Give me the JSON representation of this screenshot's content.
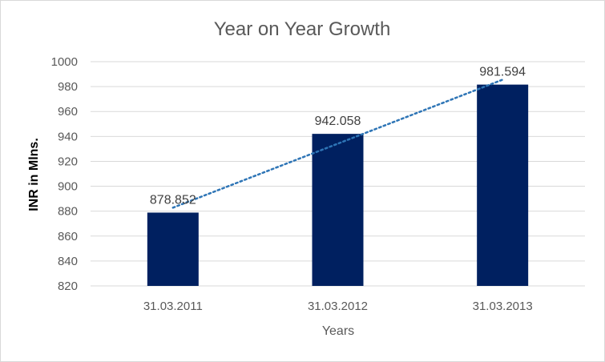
{
  "chart_data": {
    "type": "bar",
    "title": "Year on Year Growth",
    "xlabel": "Years",
    "ylabel": "INR in Mlns.",
    "categories": [
      "31.03.2011",
      "31.03.2012",
      "31.03.2013"
    ],
    "values": [
      878.852,
      942.058,
      981.594
    ],
    "data_labels": [
      "878.852",
      "942.058",
      "981.594"
    ],
    "ylim": [
      820,
      1000
    ],
    "y_ticks": [
      820,
      840,
      860,
      880,
      900,
      920,
      940,
      960,
      980,
      1000
    ],
    "grid": true,
    "legend": "none",
    "trendline": "linear, dotted",
    "colors": {
      "bar": "#002060",
      "trendline": "#2e75b6",
      "grid": "#d9d9d9",
      "text": "#595959"
    }
  }
}
